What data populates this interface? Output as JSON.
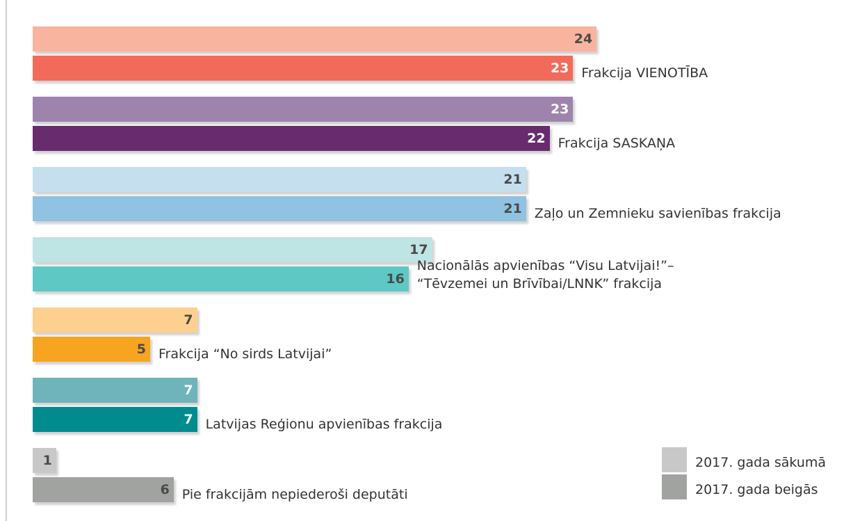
{
  "chart_data": {
    "type": "bar",
    "orientation": "horizontal",
    "categories": [
      "Frakcija VIENOTĪBA",
      "Frakcija SASKAŅA",
      "Zaļo un Zemnieku savienības frakcija",
      "Nacionālās apvienības “Visu Latvijai!”–\n“Tēvzemei un Brīvībai/LNNK” frakcija",
      "Frakcija “No sirds Latvijai”",
      "Latvijas Reģionu apvienības frakcija",
      "Pie frakcijām nepiederoši deputāti"
    ],
    "series": [
      {
        "name": "2017. gada sākumā",
        "color": "#c8c8c8",
        "values": [
          24,
          23,
          21,
          17,
          7,
          7,
          1
        ],
        "colors": [
          "#f9b4a0",
          "#9e84ac",
          "#c5dfee",
          "#bfe4e4",
          "#fdd08f",
          "#6fb4ba",
          "#c8c8c8"
        ],
        "label_colors": [
          "#4a4a4a",
          "#ffffff",
          "#4a4a4a",
          "#4a4a4a",
          "#4a4a4a",
          "#ffffff",
          "#4a4a4a"
        ]
      },
      {
        "name": "2017. gada beigās",
        "color": "#a0a3a0",
        "values": [
          23,
          22,
          21,
          16,
          5,
          7,
          6
        ],
        "colors": [
          "#f26a5a",
          "#672b6e",
          "#90c2e2",
          "#5ec8c5",
          "#f7a520",
          "#008c8f",
          "#a0a3a0"
        ],
        "label_colors": [
          "#ffffff",
          "#ffffff",
          "#4a4a4a",
          "#4a4a4a",
          "#4a4a4a",
          "#ffffff",
          "#4a4a4a"
        ]
      }
    ],
    "legend": "bottom-right"
  }
}
